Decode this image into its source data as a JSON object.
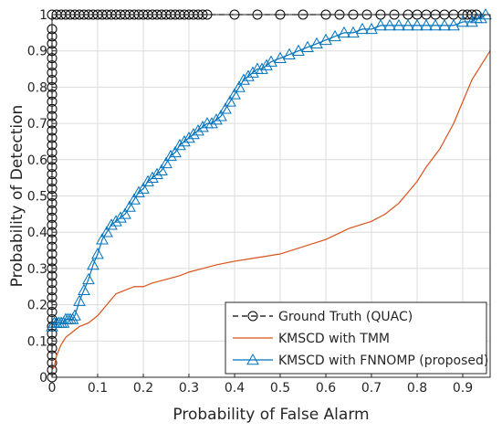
{
  "chart_data": {
    "type": "line",
    "xlabel": "Probability of False Alarm",
    "ylabel": "Probability of Detection",
    "xlim": [
      0,
      0.96
    ],
    "ylim": [
      0,
      1
    ],
    "xticks": [
      0,
      0.1,
      0.2,
      0.3,
      0.4,
      0.5,
      0.6,
      0.7,
      0.8,
      0.9
    ],
    "yticks": [
      0,
      0.1,
      0.2,
      0.3,
      0.4,
      0.5,
      0.6,
      0.7,
      0.8,
      0.9,
      1
    ],
    "xtick_labels": [
      "0",
      "0.1",
      "0.2",
      "0.3",
      "0.4",
      "0.5",
      "0.6",
      "0.7",
      "0.8",
      "0.9"
    ],
    "ytick_labels": [
      "0",
      "0.1",
      "0.2",
      "0.3",
      "0.4",
      "0.5",
      "0.6",
      "0.7",
      "0.8",
      "0.9",
      "1"
    ],
    "grid": true,
    "legend_position": "bottom-right",
    "series": [
      {
        "name": "Ground Truth (QUAC)",
        "color": "#000000",
        "line_style": "dashed",
        "marker": "circle",
        "x": [
          0,
          0,
          0,
          0,
          0,
          0,
          0,
          0,
          0,
          0,
          0,
          0,
          0,
          0,
          0,
          0,
          0,
          0,
          0,
          0,
          0,
          0,
          0,
          0,
          0,
          0,
          0,
          0,
          0,
          0,
          0,
          0,
          0,
          0,
          0,
          0,
          0,
          0,
          0,
          0,
          0,
          0,
          0,
          0,
          0,
          0,
          0,
          0,
          0,
          0,
          0.01,
          0.02,
          0.03,
          0.04,
          0.05,
          0.06,
          0.07,
          0.08,
          0.09,
          0.1,
          0.11,
          0.12,
          0.13,
          0.14,
          0.15,
          0.16,
          0.17,
          0.18,
          0.19,
          0.2,
          0.21,
          0.22,
          0.23,
          0.24,
          0.25,
          0.26,
          0.27,
          0.28,
          0.29,
          0.3,
          0.31,
          0.32,
          0.33,
          0.34,
          0.4,
          0.45,
          0.5,
          0.55,
          0.6,
          0.63,
          0.66,
          0.69,
          0.72,
          0.75,
          0.78,
          0.8,
          0.82,
          0.84,
          0.86,
          0.88,
          0.9,
          0.91,
          0.92,
          0.93
        ],
        "y": [
          0,
          0.02,
          0.04,
          0.06,
          0.08,
          0.1,
          0.12,
          0.14,
          0.16,
          0.18,
          0.2,
          0.22,
          0.24,
          0.26,
          0.28,
          0.3,
          0.32,
          0.34,
          0.36,
          0.38,
          0.4,
          0.42,
          0.44,
          0.46,
          0.48,
          0.5,
          0.52,
          0.54,
          0.56,
          0.58,
          0.6,
          0.62,
          0.64,
          0.66,
          0.68,
          0.7,
          0.72,
          0.74,
          0.76,
          0.78,
          0.8,
          0.82,
          0.84,
          0.86,
          0.88,
          0.9,
          0.92,
          0.94,
          0.96,
          1,
          1,
          1,
          1,
          1,
          1,
          1,
          1,
          1,
          1,
          1,
          1,
          1,
          1,
          1,
          1,
          1,
          1,
          1,
          1,
          1,
          1,
          1,
          1,
          1,
          1,
          1,
          1,
          1,
          1,
          1,
          1,
          1,
          1,
          1,
          1,
          1,
          1,
          1,
          1,
          1,
          1,
          1,
          1,
          1,
          1,
          1,
          1,
          1,
          1,
          1,
          1,
          1,
          1,
          1
        ]
      },
      {
        "name": "KMSCD with TMM",
        "color": "#d95319",
        "line_style": "solid",
        "marker": "none",
        "x": [
          0,
          0.005,
          0.01,
          0.02,
          0.03,
          0.04,
          0.05,
          0.06,
          0.08,
          0.1,
          0.12,
          0.14,
          0.16,
          0.18,
          0.2,
          0.22,
          0.25,
          0.28,
          0.3,
          0.33,
          0.36,
          0.4,
          0.45,
          0.5,
          0.55,
          0.6,
          0.65,
          0.7,
          0.73,
          0.76,
          0.78,
          0.8,
          0.82,
          0.85,
          0.88,
          0.9,
          0.92,
          0.94,
          0.96
        ],
        "y": [
          0.02,
          0.03,
          0.06,
          0.09,
          0.11,
          0.12,
          0.13,
          0.14,
          0.15,
          0.17,
          0.2,
          0.23,
          0.24,
          0.25,
          0.25,
          0.26,
          0.27,
          0.28,
          0.29,
          0.3,
          0.31,
          0.32,
          0.33,
          0.34,
          0.36,
          0.38,
          0.41,
          0.43,
          0.45,
          0.48,
          0.51,
          0.54,
          0.58,
          0.63,
          0.7,
          0.76,
          0.82,
          0.86,
          0.9
        ]
      },
      {
        "name": "KMSCD with FNNOMP (proposed)",
        "color": "#0072bd",
        "line_style": "solid",
        "marker": "triangle",
        "x": [
          0,
          0.005,
          0.01,
          0.015,
          0.02,
          0.025,
          0.03,
          0.035,
          0.04,
          0.045,
          0.05,
          0.06,
          0.07,
          0.08,
          0.09,
          0.1,
          0.11,
          0.12,
          0.13,
          0.14,
          0.15,
          0.16,
          0.17,
          0.18,
          0.19,
          0.2,
          0.21,
          0.22,
          0.23,
          0.24,
          0.25,
          0.26,
          0.27,
          0.28,
          0.29,
          0.3,
          0.31,
          0.32,
          0.33,
          0.34,
          0.35,
          0.36,
          0.37,
          0.38,
          0.39,
          0.4,
          0.41,
          0.42,
          0.43,
          0.44,
          0.45,
          0.46,
          0.47,
          0.48,
          0.5,
          0.52,
          0.54,
          0.56,
          0.58,
          0.6,
          0.62,
          0.64,
          0.66,
          0.68,
          0.7,
          0.72,
          0.74,
          0.76,
          0.78,
          0.8,
          0.82,
          0.84,
          0.86,
          0.88,
          0.9,
          0.92,
          0.93,
          0.94,
          0.95
        ],
        "y": [
          0.14,
          0.15,
          0.15,
          0.15,
          0.15,
          0.15,
          0.16,
          0.16,
          0.16,
          0.16,
          0.17,
          0.21,
          0.24,
          0.27,
          0.31,
          0.34,
          0.38,
          0.4,
          0.42,
          0.43,
          0.44,
          0.45,
          0.47,
          0.49,
          0.51,
          0.52,
          0.54,
          0.55,
          0.56,
          0.57,
          0.59,
          0.61,
          0.62,
          0.64,
          0.65,
          0.66,
          0.67,
          0.68,
          0.69,
          0.7,
          0.7,
          0.71,
          0.72,
          0.74,
          0.76,
          0.78,
          0.8,
          0.82,
          0.83,
          0.84,
          0.85,
          0.85,
          0.86,
          0.87,
          0.88,
          0.89,
          0.9,
          0.91,
          0.92,
          0.93,
          0.94,
          0.95,
          0.95,
          0.96,
          0.96,
          0.97,
          0.97,
          0.97,
          0.97,
          0.97,
          0.97,
          0.97,
          0.97,
          0.97,
          0.98,
          0.98,
          0.99,
          0.99,
          1
        ]
      }
    ]
  }
}
